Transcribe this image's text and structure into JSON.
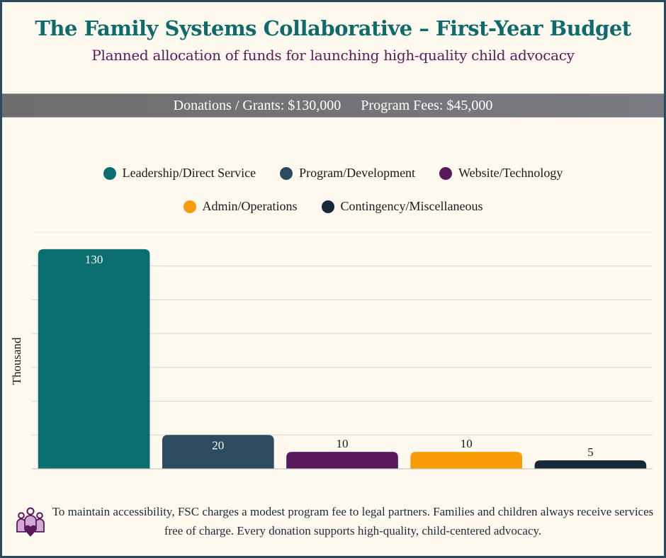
{
  "header": {
    "title": "The Family Systems Collaborative – First-Year Budget",
    "subtitle": "Planned allocation of funds for launching high-quality child advocacy"
  },
  "funding": {
    "donations": "Donations / Grants: $130,000",
    "fees": "Program Fees: $45,000"
  },
  "colors": {
    "title": "#0f6b6b",
    "subtitle": "#5a1a5c",
    "border": "#2b4a5f",
    "background": "#fdf9ef"
  },
  "footer": {
    "icon": "family-heart-icon",
    "text": "To maintain accessibility, FSC charges a modest program fee to legal partners. Families and children always receive services free of charge. Every donation supports high-quality, child-centered advocacy."
  },
  "chart_data": {
    "type": "bar",
    "title": "",
    "xlabel": "",
    "ylabel": "Thousand",
    "ylim": [
      0,
      140
    ],
    "ytick_step": 20,
    "grid": true,
    "show_ytick_labels": false,
    "legend_position": "top-center",
    "categories": [
      "Leadership/Direct Service",
      "Program/Development",
      "Website/Technology",
      "Admin/Operations",
      "Contingency/Miscellaneous"
    ],
    "values": [
      130,
      20,
      10,
      10,
      5
    ],
    "value_labels": [
      "130",
      "20",
      "10",
      "10",
      "5"
    ],
    "colors": [
      "#0a6e6e",
      "#2c4a60",
      "#5a185c",
      "#fa9c08",
      "#172838"
    ],
    "label_inside": [
      true,
      true,
      false,
      false,
      false
    ]
  }
}
